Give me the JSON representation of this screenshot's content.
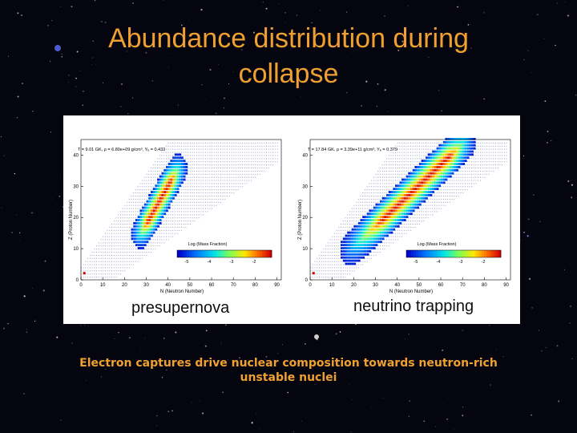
{
  "slide": {
    "title_line1": "Abundance distribution during",
    "title_line2": "collapse",
    "caption_line1": "Electron captures drive nuclear composition towards neutron-rich",
    "caption_line2": "unstable nuclei"
  },
  "colors": {
    "title": "#f0a030",
    "caption": "#f0a030",
    "background": "#050510",
    "panel": "#ffffff"
  },
  "panels": [
    {
      "id": "presupernova",
      "header": "T = 9.01 GK, ρ = 6.80e+09 g/cm³, Yₑ = 0.433",
      "ylabel": "Z (Proton Number)",
      "xlabel": "N (Neutron Number)",
      "x_ticks": [
        "0",
        "10",
        "20",
        "30",
        "40",
        "50",
        "60",
        "70",
        "80",
        "90"
      ],
      "y_ticks": [
        "0",
        "10",
        "20",
        "30",
        "40"
      ],
      "colorbar_title": "Log (Mass Fraction)",
      "colorbar_ticks": [
        "-5",
        "-4",
        "-3",
        "-2"
      ],
      "big_label": "presupernova"
    },
    {
      "id": "neutrino-trapping",
      "header": "T = 17.84 GK, ρ = 3.39e+11 g/cm³, Yₑ = 0.379",
      "ylabel": "Z (Proton Number)",
      "xlabel": "N (Neutron Number)",
      "x_ticks": [
        "0",
        "10",
        "20",
        "30",
        "40",
        "50",
        "60",
        "70",
        "80",
        "90"
      ],
      "y_ticks": [
        "0",
        "10",
        "20",
        "30",
        "40"
      ],
      "colorbar_title": "Log (Mass Fraction)",
      "colorbar_ticks": [
        "-5",
        "-4",
        "-3",
        "-2"
      ],
      "big_label": "neutrino trapping"
    }
  ]
}
